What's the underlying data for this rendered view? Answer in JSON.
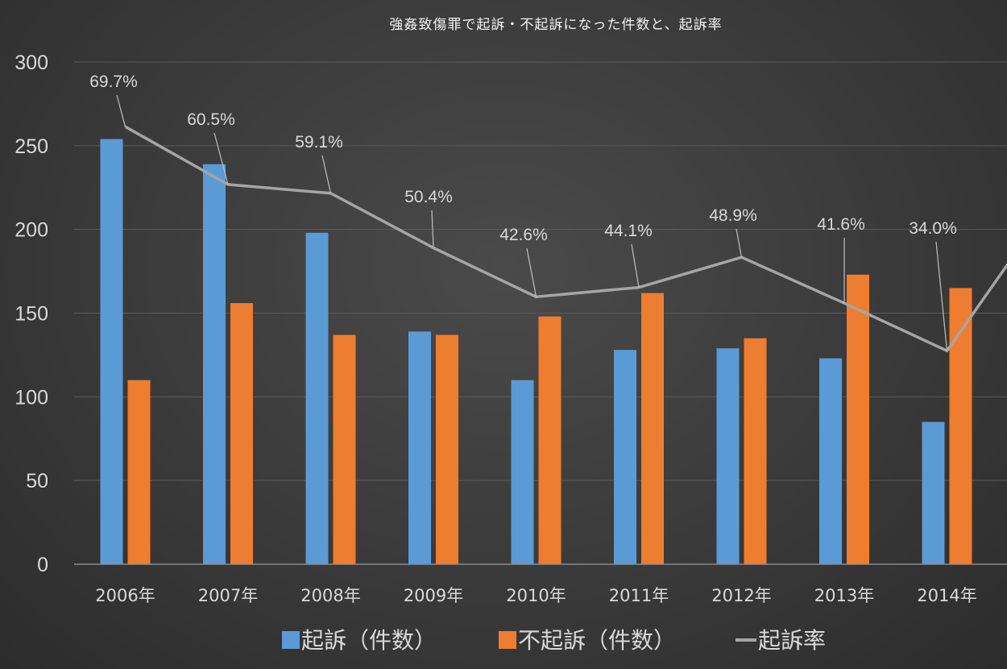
{
  "chart_data": {
    "type": "bar",
    "title": "強姦致傷罪で起訴・不起訴になった件数と、起訴率",
    "categories": [
      "2006年",
      "2007年",
      "2008年",
      "2009年",
      "2010年",
      "2011年",
      "2012年",
      "2013年",
      "2014年"
    ],
    "ylim": [
      0,
      300
    ],
    "yticks": [
      0,
      50,
      100,
      150,
      200,
      250,
      300
    ],
    "grid": true,
    "legend_position": "bottom",
    "series": [
      {
        "name": "起訴（件数）",
        "type": "bar",
        "color": "#5b9bd5",
        "values": [
          254,
          239,
          198,
          139,
          110,
          128,
          129,
          123,
          85
        ]
      },
      {
        "name": "不起訴（件数）",
        "type": "bar",
        "color": "#ed7d31",
        "values": [
          110,
          156,
          137,
          137,
          148,
          162,
          135,
          173,
          165
        ]
      },
      {
        "name": "起訴率",
        "type": "line",
        "color": "#a5a5a5",
        "values": [
          69.7,
          60.5,
          59.1,
          50.4,
          42.6,
          44.1,
          48.9,
          41.6,
          34.0
        ],
        "labels": [
          "69.7%",
          "60.5%",
          "59.1%",
          "50.4%",
          "42.6%",
          "44.1%",
          "48.9%",
          "41.6%",
          "34.0%"
        ]
      }
    ]
  }
}
